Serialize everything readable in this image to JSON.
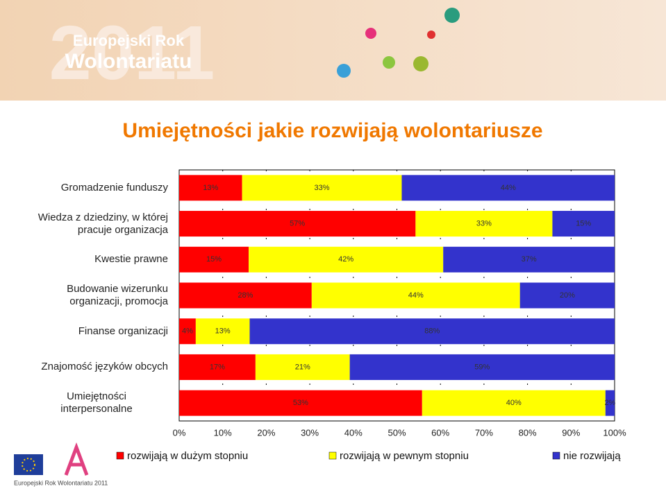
{
  "logo": {
    "top": [
      "Europejski Rok",
      "Wolontariatu"
    ],
    "year": "2011",
    "bottom": "Europejski Rok Wolontariatu 2011"
  },
  "chart_data": {
    "type": "bar",
    "orientation": "horizontal",
    "stack": "percent",
    "title": "Umiejętności jakie rozwijają wolontariusze",
    "categories": [
      "Gromadzenie funduszy",
      "Wiedza z dziedziny, w której\npracuje organizacja",
      "Kwestie prawne",
      "Budowanie wizerunku\norganizacji, promocja",
      "Finanse organizacji",
      "Znajomość języków obcych",
      "Umiejętności\ninterpersonalne"
    ],
    "series": [
      {
        "name": "rozwijają w dużym stopniu",
        "color": "#ff0000",
        "values": [
          13,
          57,
          15,
          28,
          4,
          17,
          53
        ],
        "value_labels": [
          "13%",
          "57%",
          "15%",
          "28%",
          "4%",
          "17%",
          "53%"
        ]
      },
      {
        "name": "rozwijają w pewnym stopniu",
        "color": "#ffff00",
        "values": [
          33,
          33,
          42,
          44,
          13,
          21,
          40
        ],
        "value_labels": [
          "33%",
          "33%",
          "42%",
          "44%",
          "13%",
          "21%",
          "40%"
        ]
      },
      {
        "name": "nie rozwijają",
        "color": "#3333cc",
        "values": [
          44,
          15,
          37,
          20,
          88,
          59,
          2
        ],
        "value_labels": [
          "44%",
          "15%",
          "37%",
          "20%",
          "88%",
          "59%",
          "2%"
        ]
      }
    ],
    "xlim": [
      0,
      100
    ],
    "xticks": [
      {
        "value": 0,
        "label": "0%"
      },
      {
        "value": 10,
        "label": "10%"
      },
      {
        "value": 20,
        "label": "20%"
      },
      {
        "value": 30,
        "label": "30%"
      },
      {
        "value": 40,
        "label": "40%"
      },
      {
        "value": 50,
        "label": "50%"
      },
      {
        "value": 60,
        "label": "60%"
      },
      {
        "value": 70,
        "label": "70%"
      },
      {
        "value": 80,
        "label": "80%"
      },
      {
        "value": 90,
        "label": "90%"
      },
      {
        "value": 100,
        "label": "100%"
      }
    ],
    "grid": true
  }
}
